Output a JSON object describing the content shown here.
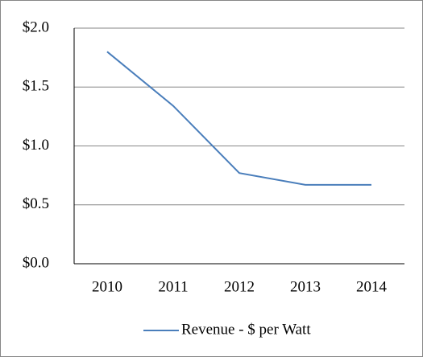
{
  "chart_data": {
    "type": "line",
    "categories": [
      "2010",
      "2011",
      "2012",
      "2013",
      "2014"
    ],
    "series": [
      {
        "name": "Revenue - $ per Watt",
        "color": "#4a7ebb",
        "values": [
          1.8,
          1.34,
          0.77,
          0.67,
          0.67
        ]
      }
    ],
    "ylim": [
      0,
      2
    ],
    "yticks": [
      {
        "value": 0,
        "label": "$0.0"
      },
      {
        "value": 0.5,
        "label": "$0.5"
      },
      {
        "value": 1,
        "label": "$1.0"
      },
      {
        "value": 1.5,
        "label": "$1.5"
      },
      {
        "value": 2,
        "label": "$2.0"
      }
    ],
    "grid": true,
    "legend": "bottom"
  }
}
